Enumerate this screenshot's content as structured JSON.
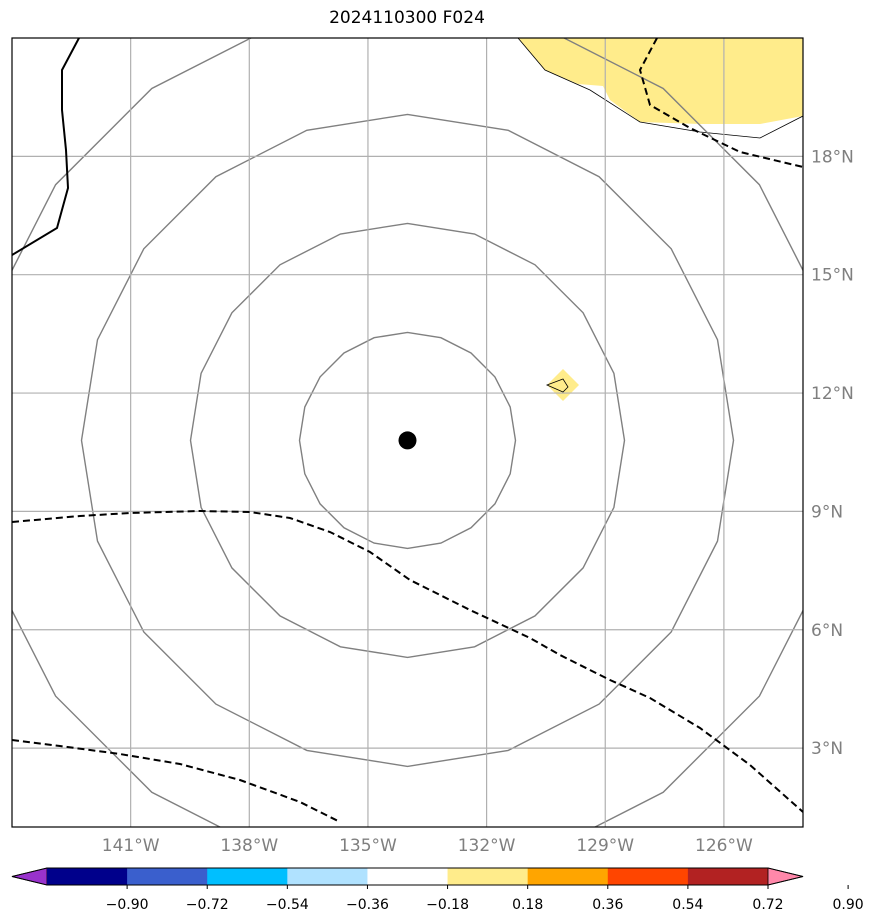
{
  "title": "2024110300 F024",
  "axes": {
    "lon_labels": [
      "141°W",
      "138°W",
      "135°W",
      "132°W",
      "129°W",
      "126°W"
    ],
    "lat_labels": [
      "18°N",
      "15°N",
      "12°N",
      "9°N",
      "6°N",
      "3°N"
    ],
    "lon_range": [
      -144,
      -124
    ],
    "lat_range": [
      1,
      21
    ],
    "grid": true
  },
  "storm_center": {
    "lon": -134,
    "lat": 10.8
  },
  "colorbar": {
    "labels": [
      "−0.90",
      "−0.72",
      "−0.54",
      "−0.36",
      "−0.18",
      "0.18",
      "0.36",
      "0.54",
      "0.72",
      "0.90"
    ],
    "colors": [
      "#9932CC",
      "#00008B",
      "#3A5FCD",
      "#00BFFF",
      "#B0E2FF",
      "#FFFFFF",
      "#FFEC8B",
      "#FFA500",
      "#FF4500",
      "#B22222",
      "#FF88AA"
    ]
  },
  "colors": {
    "positive_fill": "#FFEC8B",
    "range_rings": "#808080",
    "grid": "#b0b0b0",
    "contours": "#000000"
  }
}
